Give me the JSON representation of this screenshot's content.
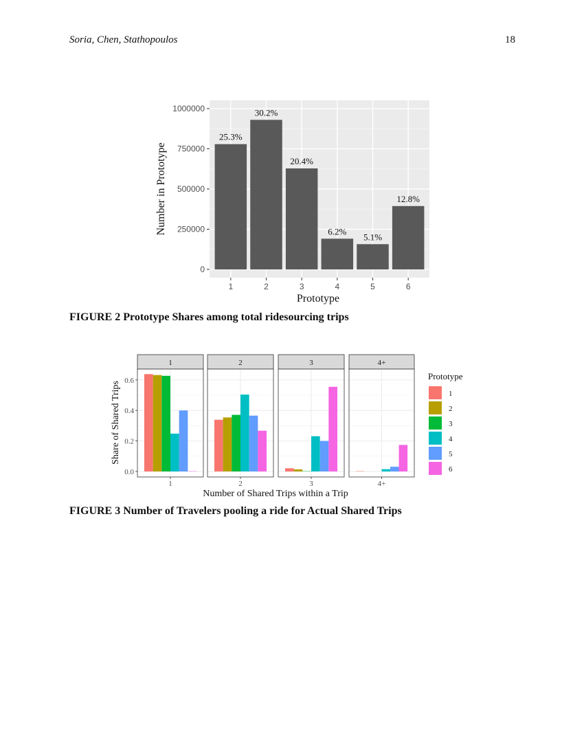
{
  "header": {
    "authors": "Soria, Chen, Stathopoulos",
    "page_number": "18"
  },
  "figure2": {
    "caption": "FIGURE 2 Prototype Shares among total ridesourcing trips"
  },
  "figure3": {
    "caption": "FIGURE 3 Number of Travelers pooling a ride for Actual Shared Trips"
  },
  "chart_data": [
    {
      "type": "bar",
      "title": "",
      "xlabel": "Prototype",
      "ylabel": "Number in Prototype",
      "categories": [
        "1",
        "2",
        "3",
        "4",
        "5",
        "6"
      ],
      "values": [
        779000,
        930000,
        628000,
        191000,
        157000,
        394000
      ],
      "data_labels": [
        "25.3%",
        "30.2%",
        "20.4%",
        "6.2%",
        "5.1%",
        "12.8%"
      ],
      "yticks": [
        0,
        250000,
        500000,
        750000,
        1000000
      ],
      "ytick_labels": [
        "0",
        "250000",
        "500000",
        "750000",
        "1000000"
      ],
      "ylim": [
        0,
        1050000
      ],
      "bar_color": "#595959",
      "panel_background": "#ebebeb",
      "grid": true,
      "legend": null
    },
    {
      "type": "bar",
      "subtype": "faceted-grouped",
      "title": "",
      "xlabel": "Number of Shared Trips within a Trip",
      "ylabel": "Share of Shared Trips",
      "facets": [
        "1",
        "2",
        "3",
        "4+"
      ],
      "categories": [
        "1",
        "2",
        "3",
        "4+"
      ],
      "yticks": [
        0.0,
        0.2,
        0.4,
        0.6
      ],
      "ytick_labels": [
        "0.0",
        "0.2",
        "0.4",
        "0.6"
      ],
      "ylim": [
        0,
        0.66
      ],
      "legend_title": "Prototype",
      "legend_position": "right",
      "grid": true,
      "series": [
        {
          "name": "1",
          "color": "#F8766D",
          "values": [
            0.638,
            0.339,
            0.021,
            0.002
          ]
        },
        {
          "name": "2",
          "color": "#B79F00",
          "values": [
            0.632,
            0.354,
            0.014,
            0.0
          ]
        },
        {
          "name": "3",
          "color": "#00BA38",
          "values": [
            0.627,
            0.371,
            0.002,
            0.0
          ]
        },
        {
          "name": "4",
          "color": "#00BFC4",
          "values": [
            0.248,
            0.504,
            0.231,
            0.015
          ]
        },
        {
          "name": "5",
          "color": "#619CFF",
          "values": [
            0.4,
            0.366,
            0.2,
            0.031
          ]
        },
        {
          "name": "6",
          "color": "#F564E3",
          "values": [
            0.002,
            0.267,
            0.555,
            0.174
          ]
        }
      ]
    }
  ]
}
